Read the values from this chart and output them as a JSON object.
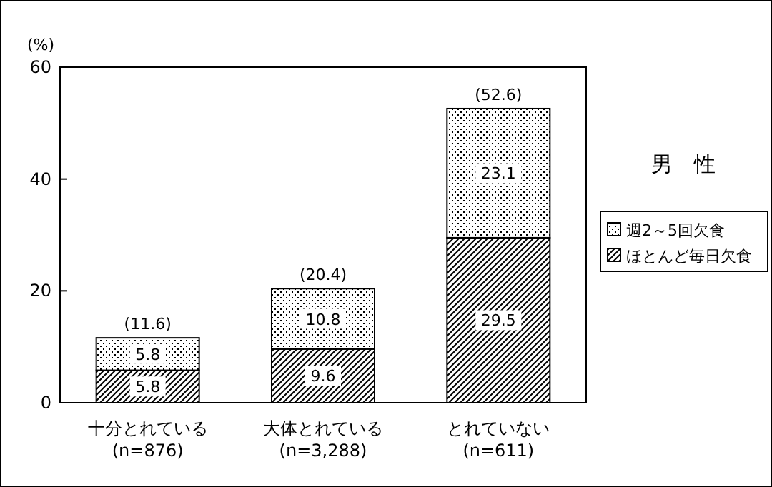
{
  "chart_data": {
    "type": "bar",
    "title": "男　性",
    "ylabel": "(%)",
    "categories": [
      "十分とれている\n(n=876)",
      "大体とれている\n(n=3,288)",
      "とれていない\n(n=611)"
    ],
    "stacked": true,
    "series": [
      {
        "name": "ほとんど毎日欠食",
        "color": "#000000",
        "values": [
          5.8,
          9.6,
          29.5
        ]
      },
      {
        "name": "週2～5回欠食",
        "color": "#000000",
        "values": [
          5.8,
          10.8,
          23.1
        ]
      }
    ],
    "totals": [
      "(11.6)",
      "(20.4)",
      "(52.6)"
    ],
    "data_labels": true,
    "ylim": [
      0,
      60
    ],
    "yticks": [
      0,
      20,
      40,
      60
    ],
    "grid": false,
    "legend": "right"
  }
}
